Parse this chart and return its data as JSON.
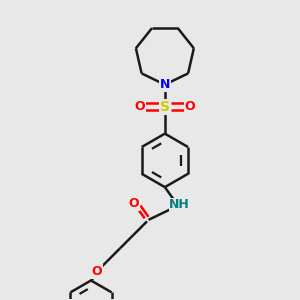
{
  "background_color": "#e8e8e8",
  "bond_color": "#1a1a1a",
  "N_color": "#0000ff",
  "O_color": "#ff0000",
  "S_color": "#cccc00",
  "NH_color": "#008080",
  "figsize": [
    3.0,
    3.0
  ],
  "dpi": 100,
  "xlim": [
    0,
    10
  ],
  "ylim": [
    0,
    10
  ]
}
